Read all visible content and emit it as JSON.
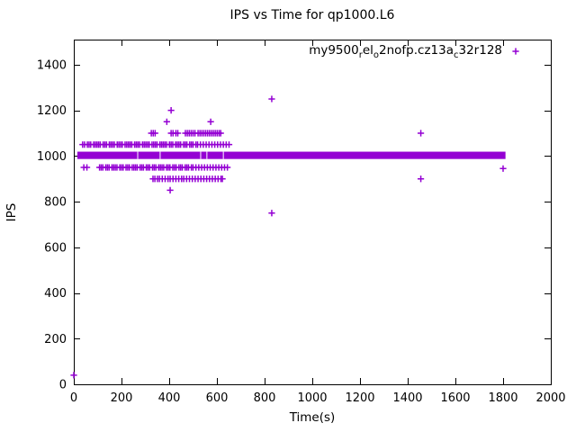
{
  "window": {
    "background": "#ffffff"
  },
  "chart_data": {
    "type": "scatter",
    "title": "IPS vs Time for qp1000.L6",
    "xlabel": "Time(s)",
    "ylabel": "IPS",
    "xlim": [
      0,
      2000
    ],
    "ylim": [
      0,
      1510
    ],
    "xticks": [
      0,
      200,
      400,
      600,
      800,
      1000,
      1200,
      1400,
      1600,
      1800,
      2000
    ],
    "yticks": [
      0,
      200,
      400,
      600,
      800,
      1000,
      1200,
      1400
    ],
    "grid": false,
    "legend_position": "top-right-inside",
    "marker": {
      "shape": "plus",
      "color": "#9400D3"
    },
    "series": [
      {
        "name": "my9500_rel_o2nofp.cz13a_c32r128",
        "display_segments": [
          {
            "text": "my9500",
            "sub": false
          },
          {
            "text": "r",
            "sub": true
          },
          {
            "text": "el",
            "sub": false
          },
          {
            "text": "o",
            "sub": true
          },
          {
            "text": "2nofp.cz13a",
            "sub": false
          },
          {
            "text": "c",
            "sub": true
          },
          {
            "text": "32r128",
            "sub": false
          }
        ],
        "band": {
          "description": "dense solid band of overlapping samples",
          "ips_low": 987,
          "ips_high": 1019,
          "t_start": 15,
          "t_end": 1810,
          "gap_times": [
            268,
            362,
            532,
            558,
            627
          ]
        },
        "rows": [
          {
            "ips": 1050,
            "t": [
              37,
              45,
              57,
              64,
              71,
              83,
              90,
              97,
              104,
              111,
              123,
              130,
              137,
              149,
              156,
              163,
              170,
              182,
              189,
              196,
              203,
              215,
              222,
              229,
              236,
              243,
              255,
              262,
              269,
              276,
              288,
              295,
              302,
              309,
              316,
              328,
              335,
              342,
              349,
              361,
              368,
              375,
              382,
              389,
              401,
              408,
              415,
              427,
              434,
              441,
              448,
              460,
              467,
              474,
              486,
              493,
              500,
              512,
              519,
              531,
              543,
              555,
              567,
              579,
              591,
              603,
              615,
              627,
              639,
              651
            ]
          },
          {
            "ips": 950,
            "t": [
              42,
              55,
              108,
              115,
              122,
              134,
              141,
              148,
              160,
              167,
              174,
              181,
              193,
              200,
              207,
              219,
              226,
              233,
              245,
              252,
              259,
              266,
              278,
              285,
              292,
              304,
              311,
              318,
              330,
              337,
              344,
              356,
              363,
              370,
              377,
              389,
              396,
              403,
              415,
              422,
              429,
              441,
              448,
              455,
              467,
              474,
              481,
              493,
              500,
              512,
              524,
              536,
              548,
              560,
              572,
              584,
              596,
              608,
              620,
              632,
              644
            ]
          },
          {
            "ips": 1100,
            "t": [
              325,
              333,
              341,
              408,
              416,
              428,
              436,
              468,
              476,
              484,
              492,
              500,
              508,
              521,
              529,
              537,
              545,
              553,
              561,
              569,
              577,
              585,
              593,
              601,
              609,
              616
            ]
          },
          {
            "ips": 900,
            "t": [
              332,
              340,
              351,
              359,
              371,
              383,
              395,
              404,
              416,
              428,
              440,
              452,
              461,
              473,
              485,
              497,
              509,
              521,
              533,
              545,
              557,
              569,
              581,
              593,
              605,
              617,
              623
            ]
          },
          {
            "ips": 1150,
            "t": [
              390,
              574
            ]
          },
          {
            "ips": 1200,
            "t": [
              408
            ]
          },
          {
            "ips": 850,
            "t": [
              404
            ]
          }
        ],
        "outliers": [
          [
            0,
            40
          ],
          [
            830,
            1250
          ],
          [
            830,
            750
          ],
          [
            1455,
            1100
          ],
          [
            1455,
            900
          ],
          [
            1800,
            945
          ]
        ]
      }
    ]
  }
}
